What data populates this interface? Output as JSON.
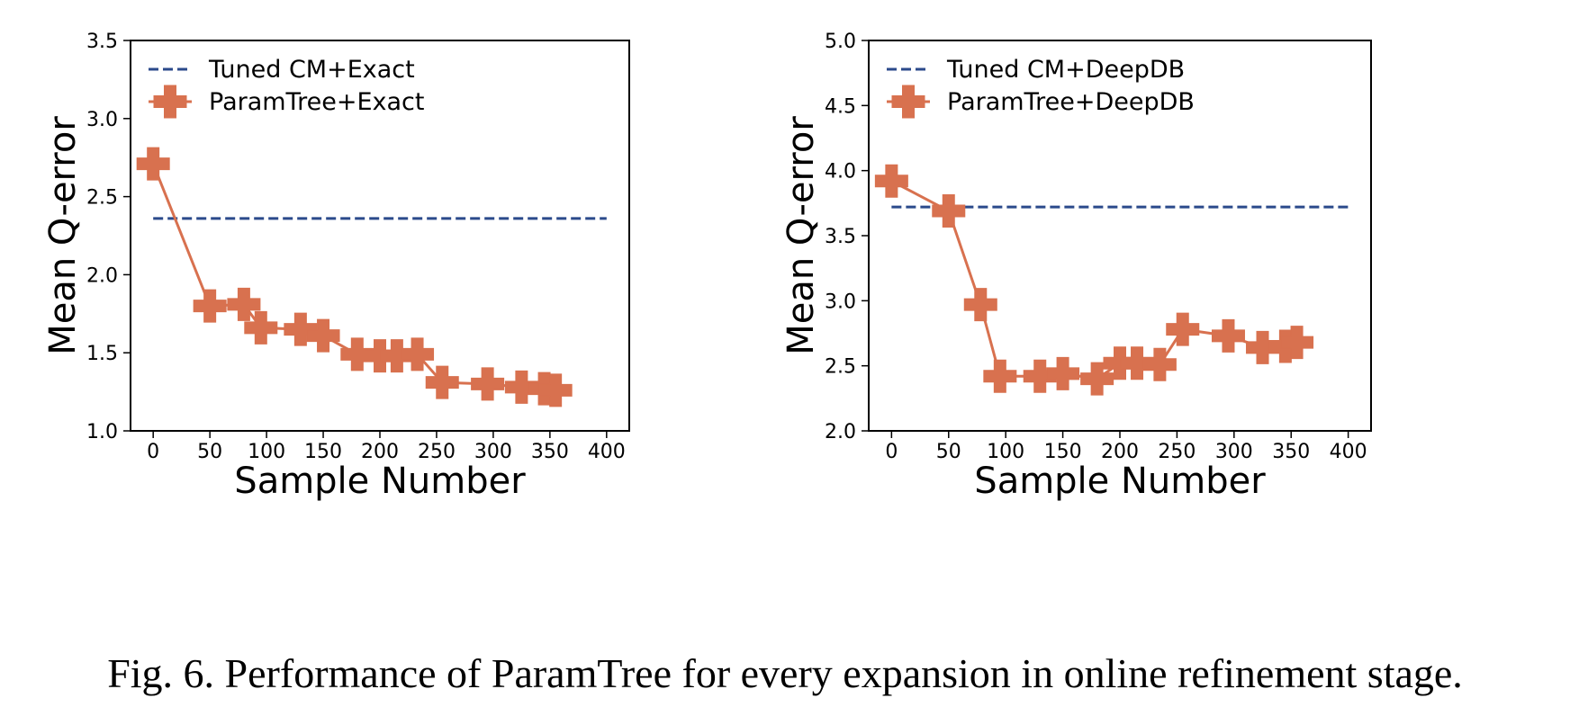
{
  "figure": {
    "caption": "Fig. 6.  Performance of ParamTree for every expansion in online refinement stage."
  },
  "chart_data": [
    {
      "type": "line",
      "xlabel": "Sample Number",
      "ylabel": "Mean Q-error",
      "xlim": [
        -20,
        420
      ],
      "ylim": [
        1.0,
        3.5
      ],
      "xticks": [
        "0",
        "50",
        "100",
        "150",
        "200",
        "250",
        "300",
        "350",
        "400"
      ],
      "yticks": [
        "1.0",
        "1.5",
        "2.0",
        "2.5",
        "3.0",
        "3.5"
      ],
      "grid": false,
      "legend_position": "top-left",
      "series": [
        {
          "name": "Tuned CM+Exact",
          "style": "dashed",
          "color": "#2b4a8b",
          "x": [
            0,
            400
          ],
          "y": [
            2.36,
            2.36
          ]
        },
        {
          "name": "ParamTree+Exact",
          "style": "solid",
          "marker": "plus",
          "color": "#d8714f",
          "x": [
            0,
            50,
            80,
            95,
            130,
            150,
            180,
            200,
            215,
            233,
            255,
            295,
            325,
            345,
            355
          ],
          "y": [
            2.71,
            1.8,
            1.81,
            1.66,
            1.65,
            1.61,
            1.49,
            1.48,
            1.48,
            1.49,
            1.31,
            1.3,
            1.28,
            1.27,
            1.26
          ]
        }
      ]
    },
    {
      "type": "line",
      "xlabel": "Sample Number",
      "ylabel": "Mean Q-error",
      "xlim": [
        -20,
        420
      ],
      "ylim": [
        2.0,
        5.0
      ],
      "xticks": [
        "0",
        "50",
        "100",
        "150",
        "200",
        "250",
        "300",
        "350",
        "400"
      ],
      "yticks": [
        "2.0",
        "2.5",
        "3.0",
        "3.5",
        "4.0",
        "4.5",
        "5.0"
      ],
      "grid": false,
      "legend_position": "top-left",
      "series": [
        {
          "name": "Tuned CM+DeepDB",
          "style": "dashed",
          "color": "#2b4a8b",
          "x": [
            0,
            400
          ],
          "y": [
            3.72,
            3.72
          ]
        },
        {
          "name": "ParamTree+DeepDB",
          "style": "solid",
          "marker": "plus",
          "color": "#d8714f",
          "x": [
            0,
            50,
            78,
            95,
            130,
            150,
            180,
            200,
            215,
            235,
            255,
            295,
            325,
            345,
            355
          ],
          "y": [
            3.92,
            3.69,
            2.97,
            2.42,
            2.42,
            2.44,
            2.4,
            2.52,
            2.52,
            2.51,
            2.78,
            2.73,
            2.64,
            2.65,
            2.68
          ]
        }
      ]
    }
  ]
}
